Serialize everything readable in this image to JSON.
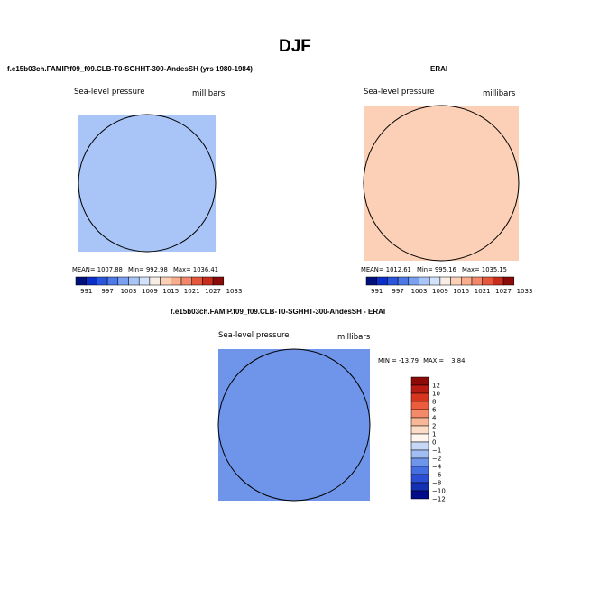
{
  "page": {
    "title": "DJF"
  },
  "chart_data": [
    {
      "type": "heatmap",
      "projection": "polar-stereographic",
      "title": "f.e15b03ch.FAMIP.f09_f09.CLB-T0-SGHHT-300-AndesSH (yrs 1980-1984)",
      "variable_label": "Sea-level pressure",
      "units_label": "millibars",
      "stats": {
        "mean_label": "MEAN=",
        "mean": "1007.88",
        "min_label": "Min=",
        "min": "992.98",
        "max_label": "Max=",
        "max": "1036.41"
      },
      "colorbar": {
        "orientation": "horizontal",
        "tick_labels": [
          "991",
          "997",
          "1003",
          "1009",
          "1015",
          "1021",
          "1027",
          "1033"
        ]
      }
    },
    {
      "type": "heatmap",
      "projection": "polar-stereographic",
      "title": "ERAI",
      "variable_label": "Sea-level pressure",
      "units_label": "millibars",
      "stats": {
        "mean_label": "MEAN=",
        "mean": "1012.61",
        "min_label": "Min=",
        "min": "995.16",
        "max_label": "Max=",
        "max": "1035.15"
      },
      "colorbar": {
        "orientation": "horizontal",
        "tick_labels": [
          "991",
          "997",
          "1003",
          "1009",
          "1015",
          "1021",
          "1027",
          "1033"
        ]
      }
    },
    {
      "type": "heatmap",
      "projection": "polar-stereographic",
      "title": "f.e15b03ch.FAMIP.f09_f09.CLB-T0-SGHHT-300-AndesSH - ERAI",
      "variable_label": "Sea-level pressure",
      "units_label": "millibars",
      "stats": {
        "min_label": "MIN =",
        "min": "-13.79",
        "max_label": "MAX =",
        "max": "3.84"
      },
      "colorbar": {
        "orientation": "vertical",
        "tick_labels": [
          "12",
          "10",
          "8",
          "6",
          "4",
          "2",
          "1",
          "0",
          "−1",
          "−2",
          "−4",
          "−6",
          "−8",
          "−10",
          "−12"
        ]
      }
    }
  ],
  "colors": {
    "seq": [
      "#00107a",
      "#0a2fc8",
      "#2a55dc",
      "#4c78e8",
      "#7ba0f0",
      "#a9c4f6",
      "#d2e2fa",
      "#f7efe6",
      "#fbd0b6",
      "#f8ae8c",
      "#f2876a",
      "#e4573c",
      "#c72c1c",
      "#8a0b08"
    ],
    "diff": [
      "#8c0a08",
      "#b71c12",
      "#d8351f",
      "#ed5c3c",
      "#f48a6a",
      "#f8b898",
      "#fcdcc6",
      "#fff5ee",
      "#c6d8f6",
      "#a0bef2",
      "#6f95ea",
      "#456ee0",
      "#2a4fd4",
      "#1430b4",
      "#000c8a"
    ]
  }
}
